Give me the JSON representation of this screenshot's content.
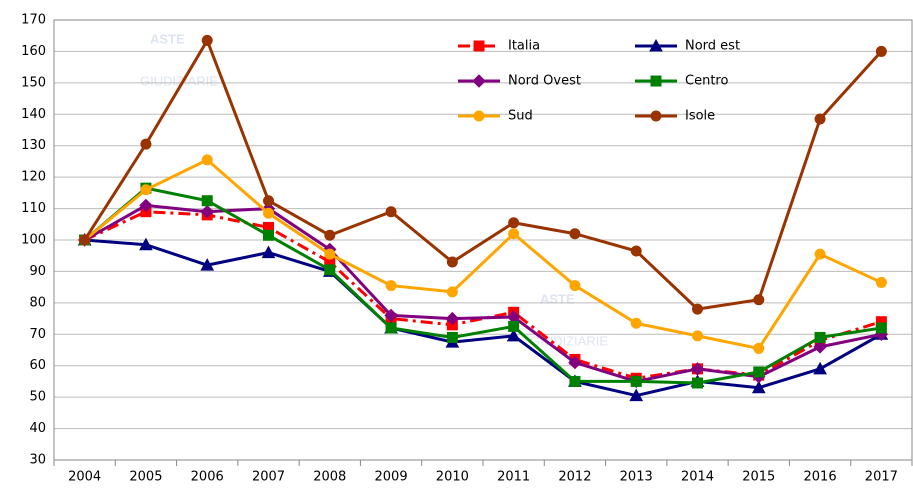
{
  "chart_data": {
    "type": "line",
    "watermark": [
      "ASTE",
      "GIUDIZIARIE"
    ],
    "categories": [
      "2004",
      "2005",
      "2006",
      "2007",
      "2008",
      "2009",
      "2010",
      "2011",
      "2012",
      "2013",
      "2014",
      "2015",
      "2016",
      "2017"
    ],
    "series": [
      {
        "name": "Italia",
        "color": "#ff0000",
        "marker": "square",
        "dash": true,
        "values": [
          100,
          109,
          108,
          104,
          93,
          75,
          73,
          77,
          62,
          56,
          59,
          57,
          68,
          74
        ]
      },
      {
        "name": "Nord est",
        "color": "#000080",
        "marker": "triangle",
        "values": [
          100,
          98.5,
          92,
          96,
          90,
          72,
          67.5,
          69.5,
          55,
          50.5,
          55,
          53,
          59,
          70
        ]
      },
      {
        "name": "Nord Ovest",
        "color": "#800080",
        "marker": "diamond",
        "values": [
          100,
          111,
          109,
          110,
          97,
          76,
          75,
          75.5,
          61,
          55,
          59,
          56.5,
          66,
          70
        ]
      },
      {
        "name": "Centro",
        "color": "#008000",
        "marker": "square",
        "values": [
          100,
          116.5,
          112.5,
          101.5,
          90.5,
          72,
          69,
          72.5,
          55,
          55,
          54.5,
          58,
          69,
          72
        ]
      },
      {
        "name": "Sud",
        "color": "#ffa500",
        "marker": "circle",
        "values": [
          100,
          116,
          125.5,
          108.5,
          95.5,
          85.5,
          83.5,
          102,
          85.5,
          73.5,
          69.5,
          65.5,
          95.5,
          86.5
        ]
      },
      {
        "name": "Isole",
        "color": "#993300",
        "marker": "circle",
        "values": [
          100,
          130.5,
          163.5,
          112.5,
          101.5,
          109,
          93,
          105.5,
          102,
          96.5,
          78,
          81,
          138.5,
          160
        ]
      }
    ],
    "ylim": [
      30,
      170
    ],
    "yticks": [
      30,
      40,
      50,
      60,
      70,
      80,
      90,
      100,
      110,
      120,
      130,
      140,
      150,
      160,
      170
    ],
    "grid": true
  }
}
